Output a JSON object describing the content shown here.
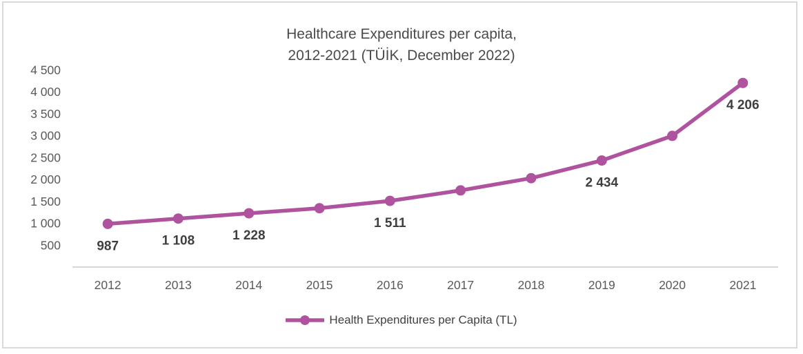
{
  "title": {
    "line1": "Healthcare Expenditures per capita,",
    "line2": "2012-2021 (TÜİK, December 2022)"
  },
  "legend": {
    "label": "Health Expenditures per Capita (TL)"
  },
  "chart_data": {
    "type": "line",
    "title": "Healthcare Expenditures per capita, 2012-2021 (TÜİK, December 2022)",
    "categories": [
      "2012",
      "2013",
      "2014",
      "2015",
      "2016",
      "2017",
      "2018",
      "2019",
      "2020",
      "2021"
    ],
    "series": [
      {
        "name": "Health Expenditures per Capita (TL)",
        "values": [
          987,
          1108,
          1228,
          1345,
          1511,
          1751,
          2030,
          2434,
          2997,
          4206
        ]
      }
    ],
    "data_labels_shown": {
      "0": "987",
      "1": "1 108",
      "2": "1 228",
      "4": "1 511",
      "7": "2 434",
      "9": "4 206"
    },
    "xlabel": "",
    "ylabel": "",
    "ylim": [
      0,
      4500
    ],
    "y_axis": {
      "tick_values": [
        4500,
        4000,
        3500,
        3000,
        2500,
        2000,
        1500,
        1000,
        500
      ],
      "tick_labels": [
        "4 500",
        "4 000",
        "3 500",
        "3 000",
        "2 500",
        "2 000",
        "1 500",
        "1 000",
        "500"
      ]
    },
    "grid": "off",
    "legend_position": "bottom",
    "colors": {
      "series": "#af539e",
      "axis_text": "#595959",
      "data_label": "#3f3f3f",
      "axis_line": "#d6d6d6",
      "title_text": "#4a4a4a",
      "legend_text": "#404040",
      "card_border": "#d9d9d9",
      "background": "#ffffff"
    }
  }
}
